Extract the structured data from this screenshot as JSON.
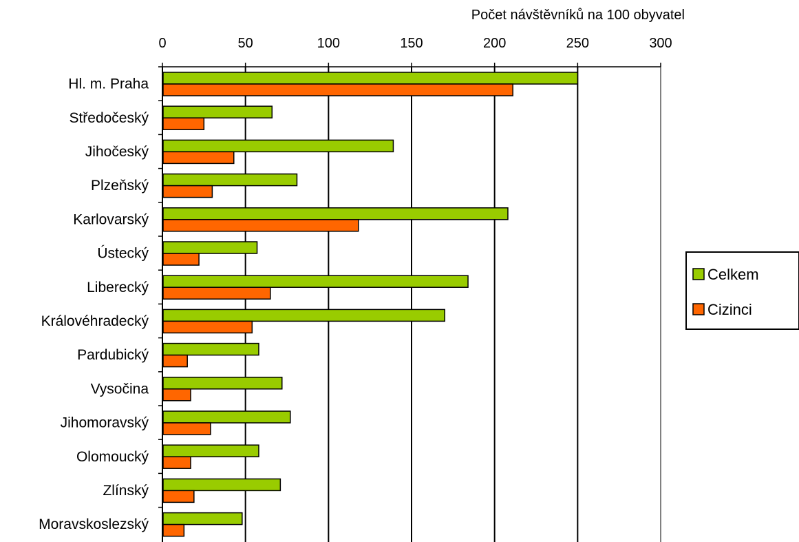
{
  "chart_data": {
    "type": "bar",
    "orientation": "horizontal",
    "title": "",
    "xlabel": "Počet návštěvníků na 100 obyvatel",
    "ylabel": "",
    "x_axis_position": "top",
    "xlim": [
      0,
      300
    ],
    "xticks": [
      "0",
      "50",
      "100",
      "150",
      "200",
      "250",
      "300"
    ],
    "grid": true,
    "legend_position": "right",
    "categories": [
      "Hl. m. Praha",
      "Středočeský",
      "Jihočeský",
      "Plzeňský",
      "Karlovarský",
      "Ústecký",
      "Liberecký",
      "Královéhradecký",
      "Pardubický",
      "Vysočina",
      "Jihomoravský",
      "Olomoucký",
      "Zlínský",
      "Moravskoslezský"
    ],
    "series": [
      {
        "name": "Celkem",
        "color": "#99CC00",
        "values": [
          250,
          66,
          139,
          81,
          208,
          57,
          184,
          170,
          58,
          72,
          77,
          58,
          71,
          48
        ]
      },
      {
        "name": "Cizinci",
        "color": "#FF6600",
        "values": [
          211,
          25,
          43,
          30,
          118,
          22,
          65,
          54,
          15,
          17,
          29,
          17,
          19,
          13
        ]
      }
    ]
  }
}
